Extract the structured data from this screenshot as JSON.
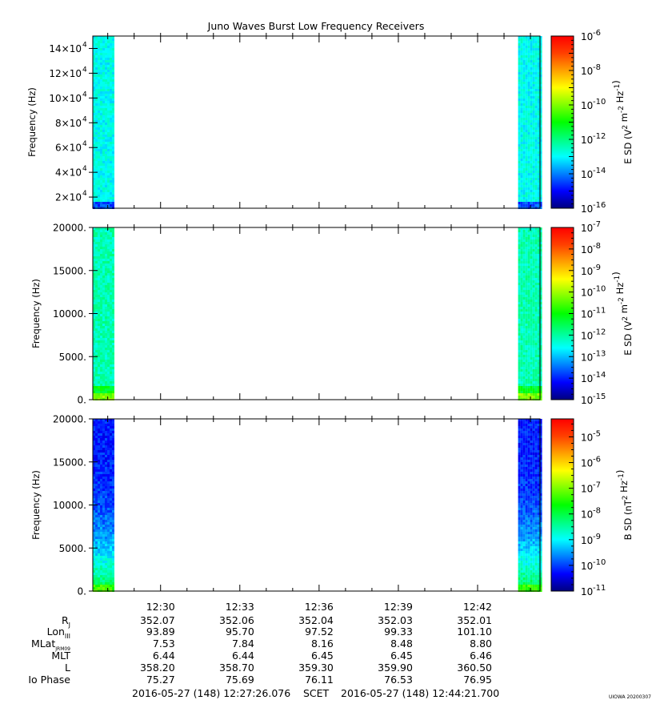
{
  "title": "Juno Waves Burst Low Frequency Receivers",
  "credit": "UIOWA 20200307",
  "time_axis": {
    "tick_labels": [
      "12:30",
      "12:33",
      "12:36",
      "12:39",
      "12:42"
    ],
    "start_label": "2016-05-27 (148) 12:27:26.076",
    "scet_label": "SCET",
    "end_label": "2016-05-27 (148) 12:44:21.700"
  },
  "ephemeris": {
    "rows": [
      {
        "label": "R",
        "sub": "J",
        "values": [
          "352.07",
          "352.06",
          "352.04",
          "352.03",
          "352.01"
        ]
      },
      {
        "label": "Lon",
        "sub": "III",
        "values": [
          "93.89",
          "95.70",
          "97.52",
          "99.33",
          "101.10"
        ]
      },
      {
        "label": "MLat",
        "sub": "JRM09",
        "values": [
          "7.53",
          "7.84",
          "8.16",
          "8.48",
          "8.80"
        ]
      },
      {
        "label": "MLT",
        "sub": "",
        "values": [
          "6.44",
          "6.44",
          "6.45",
          "6.45",
          "6.46"
        ]
      },
      {
        "label": "L",
        "sub": "",
        "values": [
          "358.20",
          "358.70",
          "359.30",
          "359.90",
          "360.50"
        ]
      },
      {
        "label": "Io Phase",
        "sub": "",
        "values": [
          "75.27",
          "75.69",
          "76.11",
          "76.53",
          "76.95"
        ]
      }
    ]
  },
  "colors": {
    "colormap": [
      "#000080",
      "#0000ff",
      "#0080ff",
      "#00ffff",
      "#00ff80",
      "#00ff00",
      "#80ff00",
      "#ffff00",
      "#ffa000",
      "#ff4000",
      "#ff0000"
    ]
  },
  "chart_data": [
    {
      "type": "heatmap",
      "ylabel": "Frequency (Hz)",
      "ylim": [
        11000,
        150000
      ],
      "yticks": [
        {
          "value": 20000,
          "label": "2×10",
          "exp": "4"
        },
        {
          "value": 40000,
          "label": "4×10",
          "exp": "4"
        },
        {
          "value": 60000,
          "label": "6×10",
          "exp": "4"
        },
        {
          "value": 80000,
          "label": "8×10",
          "exp": "4"
        },
        {
          "value": 100000,
          "label": "10×10",
          "exp": "4"
        },
        {
          "value": 120000,
          "label": "12×10",
          "exp": "4"
        },
        {
          "value": 140000,
          "label": "14×10",
          "exp": "4"
        }
      ],
      "data_segments": [
        {
          "start": 0.0,
          "end": 0.048,
          "base_level": 0.31,
          "low_band_level": 0.16
        },
        {
          "start": 0.951,
          "end": 1.0,
          "base_level": 0.31,
          "low_band_level": 0.16
        }
      ],
      "colorbar": {
        "label": "E SD (V",
        "label_tail": "m",
        "label_end": "Hz",
        "exps": [
          "2",
          "-2",
          "-1"
        ],
        "range_exp": [
          -16,
          -6
        ],
        "ticks": [
          {
            "base": "10",
            "exp": "-6"
          },
          {
            "base": "10",
            "exp": "-8"
          },
          {
            "base": "10",
            "exp": "-10"
          },
          {
            "base": "10",
            "exp": "-12"
          },
          {
            "base": "10",
            "exp": "-14"
          },
          {
            "base": "10",
            "exp": "-16"
          }
        ]
      }
    },
    {
      "type": "heatmap",
      "ylabel": "Frequency (Hz)",
      "ylim": [
        0,
        20000
      ],
      "yticks": [
        {
          "value": 0,
          "label": "0.",
          "exp": ""
        },
        {
          "value": 5000,
          "label": "5000.",
          "exp": ""
        },
        {
          "value": 10000,
          "label": "10000.",
          "exp": ""
        },
        {
          "value": 15000,
          "label": "15000.",
          "exp": ""
        },
        {
          "value": 20000,
          "label": "20000.",
          "exp": ""
        }
      ],
      "data_segments": [
        {
          "start": 0.0,
          "end": 0.048,
          "base_level": 0.36,
          "low_band_level": 0.55
        },
        {
          "start": 0.951,
          "end": 1.0,
          "base_level": 0.36,
          "low_band_level": 0.55
        }
      ],
      "colorbar": {
        "label": "E SD (V",
        "label_tail": "m",
        "label_end": "Hz",
        "exps": [
          "2",
          "-2",
          "-1"
        ],
        "range_exp": [
          -15,
          -7
        ],
        "ticks": [
          {
            "base": "10",
            "exp": "-7"
          },
          {
            "base": "10",
            "exp": "-8"
          },
          {
            "base": "10",
            "exp": "-9"
          },
          {
            "base": "10",
            "exp": "-10"
          },
          {
            "base": "10",
            "exp": "-11"
          },
          {
            "base": "10",
            "exp": "-12"
          },
          {
            "base": "10",
            "exp": "-13"
          },
          {
            "base": "10",
            "exp": "-14"
          },
          {
            "base": "10",
            "exp": "-15"
          }
        ]
      }
    },
    {
      "type": "heatmap",
      "ylabel": "Frequency (Hz)",
      "ylim": [
        0,
        20000
      ],
      "yticks": [
        {
          "value": 0,
          "label": "0.",
          "exp": ""
        },
        {
          "value": 5000,
          "label": "5000.",
          "exp": ""
        },
        {
          "value": 10000,
          "label": "10000.",
          "exp": ""
        },
        {
          "value": 15000,
          "label": "15000.",
          "exp": ""
        },
        {
          "value": 20000,
          "label": "20000.",
          "exp": ""
        }
      ],
      "data_segments": [
        {
          "start": 0.0,
          "end": 0.048,
          "base_level": 0.12,
          "low_band_level": 0.5
        },
        {
          "start": 0.951,
          "end": 1.0,
          "base_level": 0.12,
          "low_band_level": 0.5
        }
      ],
      "colorbar": {
        "label": "B SD (nT",
        "label_tail": "Hz",
        "label_end": "",
        "exps": [
          "2",
          "-1",
          ""
        ],
        "range_exp": [
          -11,
          -4.3
        ],
        "ticks": [
          {
            "base": "10",
            "exp": "-5"
          },
          {
            "base": "10",
            "exp": "-6"
          },
          {
            "base": "10",
            "exp": "-7"
          },
          {
            "base": "10",
            "exp": "-8"
          },
          {
            "base": "10",
            "exp": "-9"
          },
          {
            "base": "10",
            "exp": "-10"
          },
          {
            "base": "10",
            "exp": "-11"
          }
        ]
      }
    }
  ]
}
